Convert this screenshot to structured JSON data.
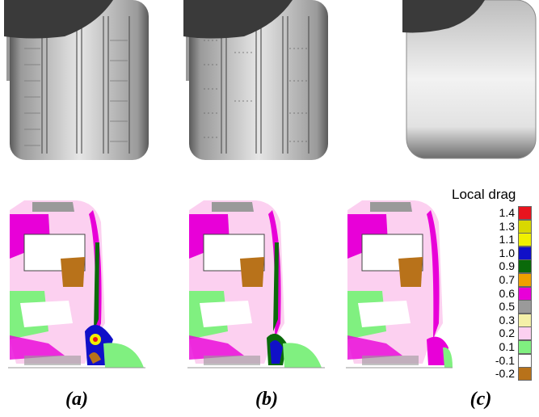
{
  "figure": {
    "panel_labels": [
      "(a)",
      "(b)",
      "(c)"
    ],
    "legend": {
      "title": "Local drag",
      "values": [
        "1.4",
        "1.3",
        "1.1",
        "1.0",
        "0.9",
        "0.7",
        "0.6",
        "0.5",
        "0.3",
        "0.2",
        "0.1",
        "-0.1",
        "-0.2"
      ],
      "colors": [
        "#e8141e",
        "#d8d800",
        "#f0f000",
        "#1010c8",
        "#0a6a0a",
        "#f0a000",
        "#e800d8",
        "#9a9a9a",
        "#f4f0a8",
        "#fcd0f0",
        "#80f080",
        "#ffffff",
        "#b8721a"
      ]
    }
  }
}
